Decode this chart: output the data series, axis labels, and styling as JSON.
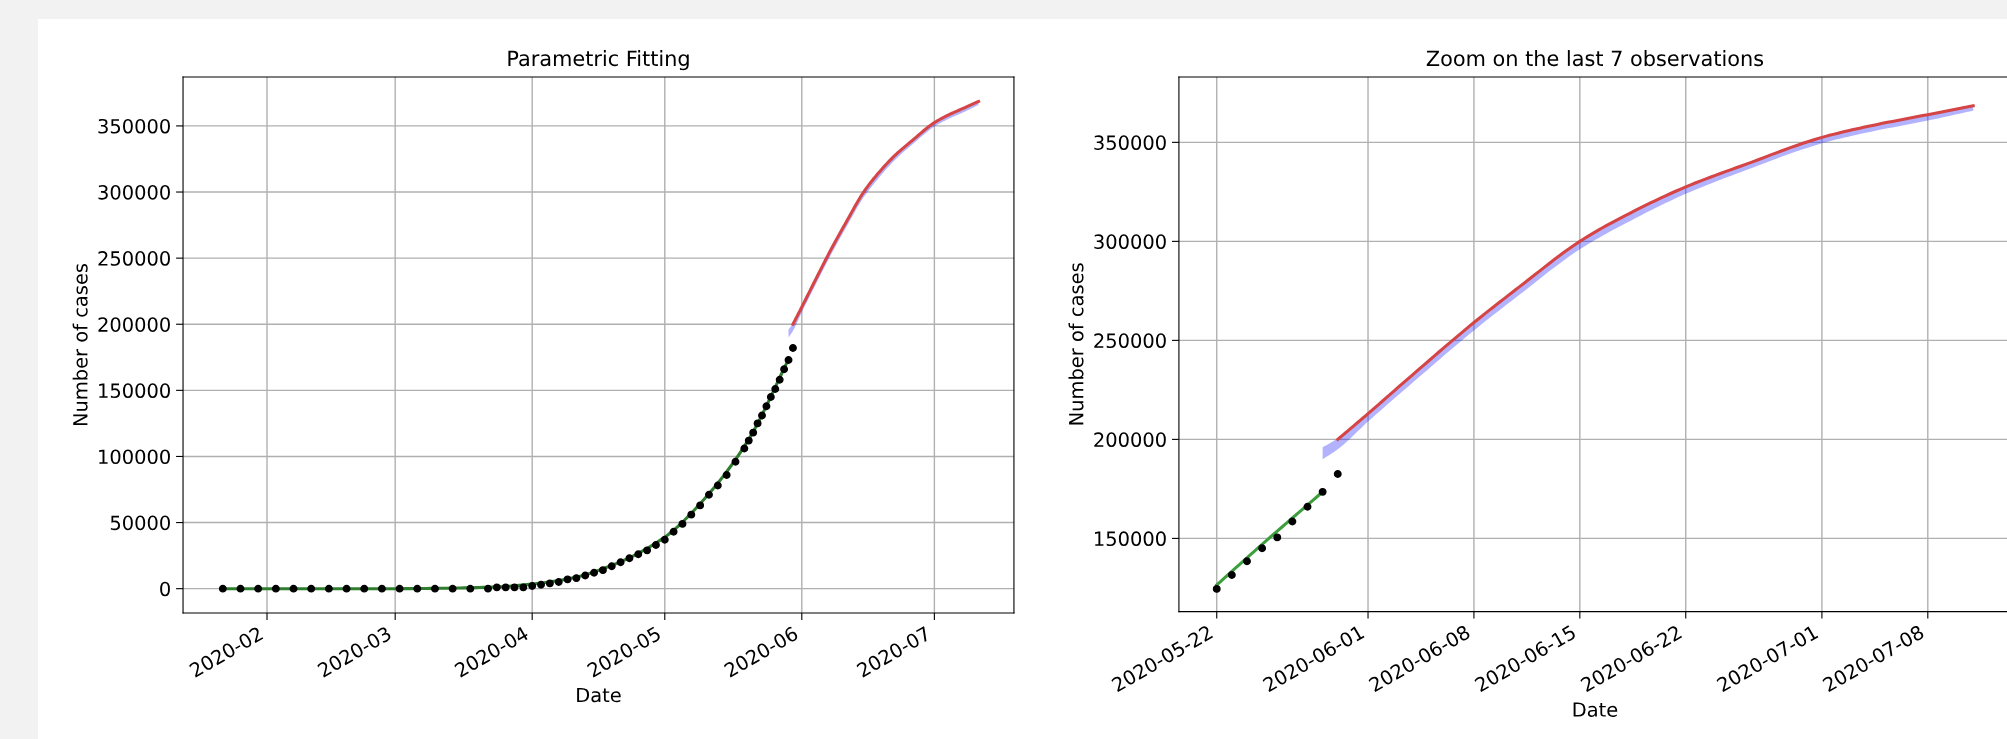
{
  "chart_data": [
    {
      "type": "line",
      "title": "Parametric Fitting",
      "xlabel": "Date",
      "ylabel": "Number of cases",
      "xlim": [
        "2020-01-13",
        "2020-07-19"
      ],
      "ylim": [
        -18400,
        387000
      ],
      "xticks": [
        {
          "value": "2020-02-01",
          "label": "2020-02"
        },
        {
          "value": "2020-03-01",
          "label": "2020-03"
        },
        {
          "value": "2020-04-01",
          "label": "2020-04"
        },
        {
          "value": "2020-05-01",
          "label": "2020-05"
        },
        {
          "value": "2020-06-01",
          "label": "2020-06"
        },
        {
          "value": "2020-07-01",
          "label": "2020-07"
        }
      ],
      "yticks": [
        0,
        50000,
        100000,
        150000,
        200000,
        250000,
        300000,
        350000
      ],
      "grid": true,
      "series": [
        {
          "type": "scatter",
          "marker": "circle",
          "color": "#000000",
          "x": [
            "2020-01-22",
            "2020-01-26",
            "2020-01-30",
            "2020-02-03",
            "2020-02-07",
            "2020-02-11",
            "2020-02-15",
            "2020-02-19",
            "2020-02-23",
            "2020-02-27",
            "2020-03-02",
            "2020-03-06",
            "2020-03-10",
            "2020-03-14",
            "2020-03-18",
            "2020-03-22",
            "2020-03-24",
            "2020-03-26",
            "2020-03-28",
            "2020-03-30",
            "2020-04-01",
            "2020-04-03",
            "2020-04-05",
            "2020-04-07",
            "2020-04-09",
            "2020-04-11",
            "2020-04-13",
            "2020-04-15",
            "2020-04-17",
            "2020-04-19",
            "2020-04-21",
            "2020-04-23",
            "2020-04-25",
            "2020-04-27",
            "2020-04-29",
            "2020-05-01",
            "2020-05-03",
            "2020-05-05",
            "2020-05-07",
            "2020-05-09",
            "2020-05-11",
            "2020-05-13",
            "2020-05-15",
            "2020-05-17",
            "2020-05-19",
            "2020-05-20",
            "2020-05-21",
            "2020-05-22",
            "2020-05-23",
            "2020-05-24",
            "2020-05-25",
            "2020-05-26",
            "2020-05-27",
            "2020-05-28",
            "2020-05-29",
            "2020-05-30"
          ],
          "values": [
            0,
            0,
            0,
            0,
            0,
            0,
            0,
            0,
            0,
            0,
            0,
            0,
            0,
            0,
            0,
            0,
            1000,
            1000,
            1000,
            1000,
            2000,
            3000,
            4000,
            5000,
            7000,
            8000,
            10000,
            12000,
            14000,
            17000,
            20000,
            23000,
            26000,
            29000,
            33000,
            37000,
            43000,
            49000,
            56000,
            63000,
            71000,
            78000,
            86000,
            96000,
            106000,
            112000,
            118000,
            125000,
            131000,
            138000,
            145000,
            151000,
            158000,
            166000,
            173000,
            182000
          ]
        },
        {
          "type": "line",
          "color": "#2f7d2f",
          "x": [
            "2020-01-22",
            "2020-02-15",
            "2020-03-01",
            "2020-03-15",
            "2020-03-25",
            "2020-04-01",
            "2020-04-10",
            "2020-04-20",
            "2020-05-01",
            "2020-05-10",
            "2020-05-20",
            "2020-05-29"
          ],
          "values": [
            0,
            0,
            0,
            500,
            1500,
            3500,
            8000,
            19000,
            39000,
            68000,
            113000,
            173500
          ]
        },
        {
          "type": "line",
          "color": "#d64545",
          "x": [
            "2020-05-29",
            "2020-05-30",
            "2020-06-01",
            "2020-06-04",
            "2020-06-08",
            "2020-06-11",
            "2020-06-15",
            "2020-06-18",
            "2020-06-22",
            "2020-06-26",
            "2020-07-01",
            "2020-07-04",
            "2020-07-08",
            "2020-07-11"
          ],
          "values": [
            null,
            200000,
            213000,
            233000,
            259000,
            277000,
            300000,
            313000,
            327500,
            339000,
            352500,
            358000,
            364000,
            368500
          ],
          "lower": [
            190000,
            195000,
            209000,
            229000,
            255000,
            273000,
            296000,
            309000,
            324000,
            336000,
            349500,
            355000,
            361000,
            366000
          ],
          "upper": [
            196000,
            200500,
            213500,
            233500,
            259500,
            277500,
            300500,
            313500,
            328000,
            339500,
            353000,
            358500,
            364500,
            369000
          ]
        }
      ]
    },
    {
      "type": "line",
      "title": "Zoom on the last 7 observations",
      "xlabel": "Date",
      "ylabel": "Number of cases",
      "xlim": [
        "2020-05-19T12:00",
        "2020-07-13T12:00"
      ],
      "ylim": [
        113000,
        383000
      ],
      "xticks": [
        {
          "value": "2020-05-22",
          "label": "2020-05-22"
        },
        {
          "value": "2020-06-01",
          "label": "2020-06-01"
        },
        {
          "value": "2020-06-08",
          "label": "2020-06-08"
        },
        {
          "value": "2020-06-15",
          "label": "2020-06-15"
        },
        {
          "value": "2020-06-22",
          "label": "2020-06-22"
        },
        {
          "value": "2020-07-01",
          "label": "2020-07-01"
        },
        {
          "value": "2020-07-08",
          "label": "2020-07-08"
        }
      ],
      "yticks": [
        150000,
        200000,
        250000,
        300000,
        350000
      ],
      "grid": true,
      "series": [
        {
          "type": "line",
          "color": "#3c9e3c",
          "x": [
            "2020-05-22",
            "2020-05-25",
            "2020-05-29"
          ],
          "values": [
            126500,
            147000,
            173500
          ]
        },
        {
          "type": "scatter",
          "marker": "circle",
          "color": "#000000",
          "x": [
            "2020-05-22",
            "2020-05-23",
            "2020-05-24",
            "2020-05-25",
            "2020-05-26",
            "2020-05-27",
            "2020-05-28",
            "2020-05-29",
            "2020-05-30"
          ],
          "values": [
            124500,
            131500,
            138500,
            145000,
            150500,
            158500,
            166000,
            173500,
            182500
          ]
        },
        {
          "type": "line",
          "color": "#d64545",
          "x": [
            "2020-05-29",
            "2020-05-30",
            "2020-06-01",
            "2020-06-04",
            "2020-06-08",
            "2020-06-11",
            "2020-06-15",
            "2020-06-18",
            "2020-06-22",
            "2020-06-26",
            "2020-07-01",
            "2020-07-04",
            "2020-07-08",
            "2020-07-11"
          ],
          "values": [
            null,
            200000,
            213000,
            233000,
            259000,
            277000,
            300000,
            313000,
            327500,
            339000,
            352500,
            358000,
            364000,
            368500
          ],
          "lower": [
            190000,
            195000,
            209000,
            229000,
            255000,
            273000,
            296000,
            309000,
            324000,
            336000,
            349500,
            355000,
            361000,
            366000
          ],
          "upper": [
            196000,
            200500,
            213500,
            233500,
            259500,
            277500,
            300500,
            313500,
            328000,
            339500,
            353000,
            358500,
            364500,
            369000
          ]
        }
      ]
    }
  ]
}
